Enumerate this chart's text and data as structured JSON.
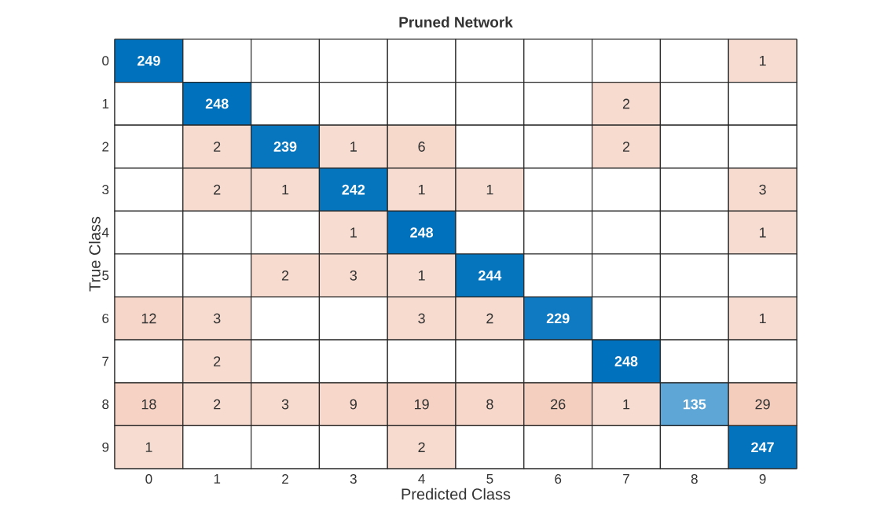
{
  "chart_data": {
    "type": "heatmap",
    "data_labels": true,
    "title": "Pruned Network",
    "xlabel": "Predicted Class",
    "ylabel": "True Class",
    "categories": [
      "0",
      "1",
      "2",
      "3",
      "4",
      "5",
      "6",
      "7",
      "8",
      "9"
    ],
    "y_categories": [
      "0",
      "1",
      "2",
      "3",
      "4",
      "5",
      "6",
      "7",
      "8",
      "9"
    ],
    "cells": [
      [
        249,
        null,
        null,
        null,
        null,
        null,
        null,
        null,
        null,
        1
      ],
      [
        null,
        248,
        null,
        null,
        null,
        null,
        null,
        2,
        null,
        null
      ],
      [
        null,
        2,
        239,
        1,
        6,
        null,
        null,
        2,
        null,
        null
      ],
      [
        null,
        2,
        1,
        242,
        1,
        1,
        null,
        null,
        null,
        3
      ],
      [
        null,
        null,
        null,
        1,
        248,
        null,
        null,
        null,
        null,
        1
      ],
      [
        null,
        null,
        2,
        3,
        1,
        244,
        null,
        null,
        null,
        null
      ],
      [
        12,
        3,
        null,
        null,
        3,
        2,
        229,
        null,
        null,
        1
      ],
      [
        null,
        2,
        null,
        null,
        null,
        null,
        null,
        248,
        null,
        null
      ],
      [
        18,
        2,
        3,
        9,
        19,
        8,
        26,
        1,
        135,
        29
      ],
      [
        1,
        null,
        null,
        null,
        2,
        null,
        null,
        null,
        null,
        247
      ]
    ]
  }
}
